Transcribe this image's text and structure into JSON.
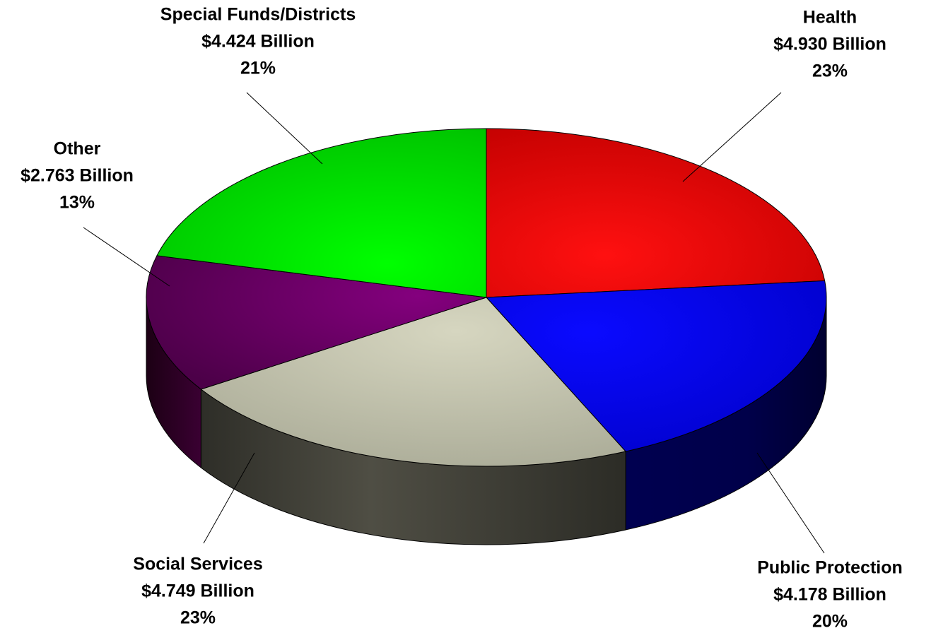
{
  "chart_data": {
    "type": "pie",
    "style": "3d",
    "unit": "Billion",
    "slices": [
      {
        "name": "Health",
        "value": 4.93,
        "value_label": "$4.930 Billion",
        "percent_label": "23%",
        "color": "#ff0000"
      },
      {
        "name": "Public Protection",
        "value": 4.178,
        "value_label": "$4.178 Billion",
        "percent_label": "20%",
        "color": "#0000ff"
      },
      {
        "name": "Social Services",
        "value": 4.749,
        "value_label": "$4.749 Billion",
        "percent_label": "23%",
        "color": "#d0d0b8"
      },
      {
        "name": "Other",
        "value": 2.763,
        "value_label": "$2.763 Billion",
        "percent_label": "13%",
        "color": "#800080"
      },
      {
        "name": "Special Funds/Districts",
        "value": 4.424,
        "value_label": "$4.424 Billion",
        "percent_label": "21%",
        "color": "#00ff00"
      }
    ]
  }
}
